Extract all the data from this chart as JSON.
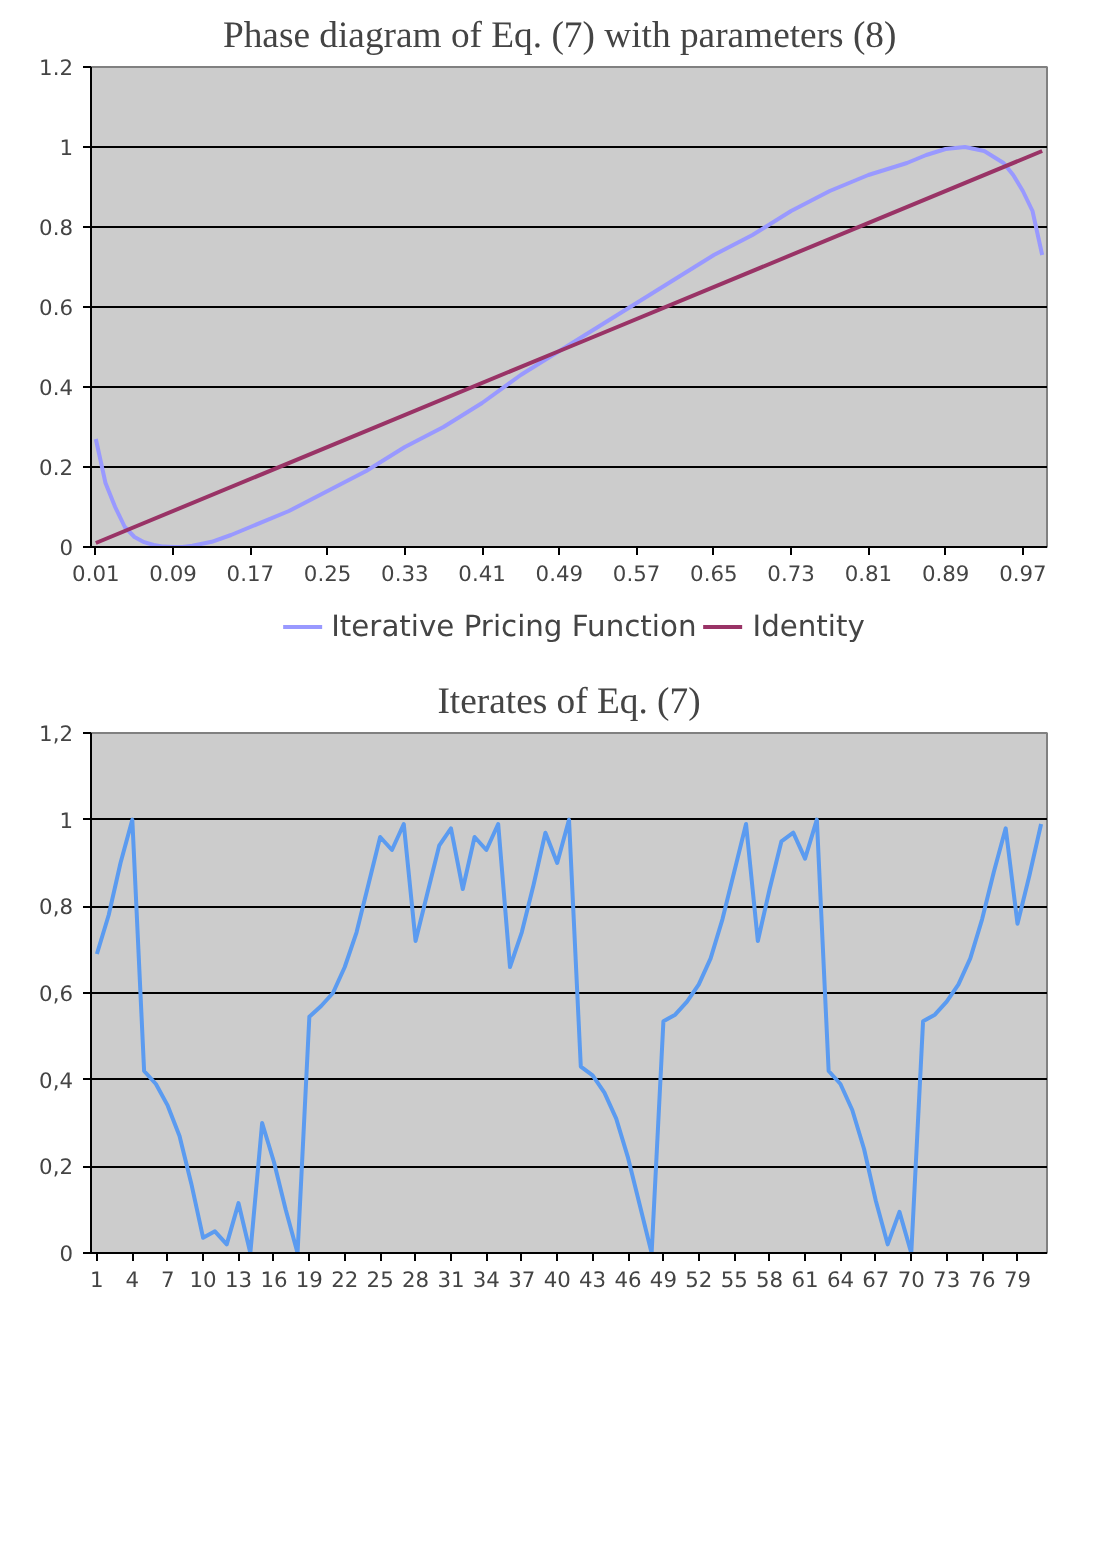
{
  "chart_data": [
    {
      "type": "line",
      "title": "Phase diagram of  Eq. (7) with  parameters (8)",
      "xlim": [
        0.005,
        0.995
      ],
      "xticks": [
        0.01,
        0.09,
        0.17,
        0.25,
        0.33,
        0.41,
        0.49,
        0.57,
        0.65,
        0.73,
        0.81,
        0.89,
        0.97
      ],
      "ylim": [
        0,
        1.2
      ],
      "yticks": [
        0,
        0.2,
        0.4,
        0.6,
        0.8,
        1,
        1.2
      ],
      "grid": "y",
      "legend": "bottom",
      "marker": "none",
      "line_style": "solid",
      "series": [
        {
          "name": "Iterative Pricing Function",
          "color": "#9999ff",
          "x": [
            0.01,
            0.02,
            0.03,
            0.04,
            0.05,
            0.06,
            0.07,
            0.08,
            0.09,
            0.1,
            0.11,
            0.13,
            0.15,
            0.17,
            0.21,
            0.25,
            0.29,
            0.33,
            0.37,
            0.41,
            0.45,
            0.49,
            0.53,
            0.57,
            0.61,
            0.65,
            0.69,
            0.73,
            0.77,
            0.81,
            0.85,
            0.87,
            0.89,
            0.91,
            0.93,
            0.95,
            0.96,
            0.97,
            0.98,
            0.99
          ],
          "values": [
            0.27,
            0.16,
            0.1,
            0.05,
            0.025,
            0.012,
            0.005,
            0.001,
            0,
            0,
            0.003,
            0.013,
            0.03,
            0.05,
            0.09,
            0.14,
            0.19,
            0.25,
            0.3,
            0.36,
            0.43,
            0.49,
            0.55,
            0.61,
            0.67,
            0.73,
            0.78,
            0.84,
            0.89,
            0.93,
            0.96,
            0.98,
            0.995,
            1.0,
            0.99,
            0.96,
            0.93,
            0.89,
            0.84,
            0.73
          ]
        },
        {
          "name": "Identity",
          "color": "#993366",
          "x": [
            0.01,
            0.5,
            0.99
          ],
          "values": [
            0.01,
            0.5,
            0.99
          ]
        }
      ]
    },
    {
      "type": "line",
      "title": "Iterates of Eq. (7)",
      "xlim": [
        0.5,
        81.5
      ],
      "xticks": [
        1,
        4,
        7,
        10,
        13,
        16,
        19,
        22,
        25,
        28,
        31,
        34,
        37,
        40,
        43,
        46,
        49,
        52,
        55,
        58,
        61,
        64,
        67,
        70,
        73,
        76,
        79
      ],
      "ylim": [
        0,
        1.2
      ],
      "yticks": [
        {
          "value": 0,
          "label": "0"
        },
        {
          "value": 0.2,
          "label": "0,2"
        },
        {
          "value": 0.4,
          "label": "0,4"
        },
        {
          "value": 0.6,
          "label": "0,6"
        },
        {
          "value": 0.8,
          "label": "0,8"
        },
        {
          "value": 1,
          "label": "1"
        },
        {
          "value": 1.2,
          "label": "1,2"
        }
      ],
      "grid": "y",
      "marker": "none",
      "line_style": "solid",
      "series": [
        {
          "color": "#5b9bf0",
          "x": [
            1,
            2,
            3,
            4,
            5,
            6,
            7,
            8,
            9,
            10,
            11,
            12,
            13,
            14,
            15,
            16,
            17,
            18,
            19,
            20,
            21,
            22,
            23,
            24,
            25,
            26,
            27,
            28,
            29,
            30,
            31,
            32,
            33,
            34,
            35,
            36,
            37,
            38,
            39,
            40,
            41,
            42,
            43,
            44,
            45,
            46,
            47,
            48,
            49,
            50,
            51,
            52,
            53,
            54,
            55,
            56,
            57,
            58,
            59,
            60,
            61,
            62,
            63,
            64,
            65,
            66,
            67,
            68,
            69,
            70,
            71,
            72,
            73,
            74,
            75,
            76,
            77,
            78,
            79,
            80,
            81
          ],
          "values": [
            0.69,
            0.78,
            0.9,
            1.0,
            0.42,
            0.39,
            0.34,
            0.27,
            0.16,
            0.035,
            0.05,
            0.02,
            0.115,
            0.0,
            0.3,
            0.21,
            0.1,
            0.0,
            0.545,
            0.57,
            0.6,
            0.66,
            0.74,
            0.85,
            0.96,
            0.93,
            0.99,
            0.72,
            0.83,
            0.94,
            0.98,
            0.84,
            0.96,
            0.93,
            0.99,
            0.66,
            0.74,
            0.85,
            0.97,
            0.9,
            1.0,
            0.43,
            0.41,
            0.37,
            0.31,
            0.22,
            0.11,
            0.0,
            0.535,
            0.55,
            0.58,
            0.62,
            0.68,
            0.77,
            0.88,
            0.99,
            0.72,
            0.84,
            0.95,
            0.97,
            0.91,
            1.0,
            0.42,
            0.39,
            0.33,
            0.24,
            0.12,
            0.02,
            0.095,
            0.0,
            0.535,
            0.55,
            0.58,
            0.62,
            0.68,
            0.77,
            0.88,
            0.98,
            0.76,
            0.87,
            0.99
          ]
        }
      ]
    }
  ]
}
